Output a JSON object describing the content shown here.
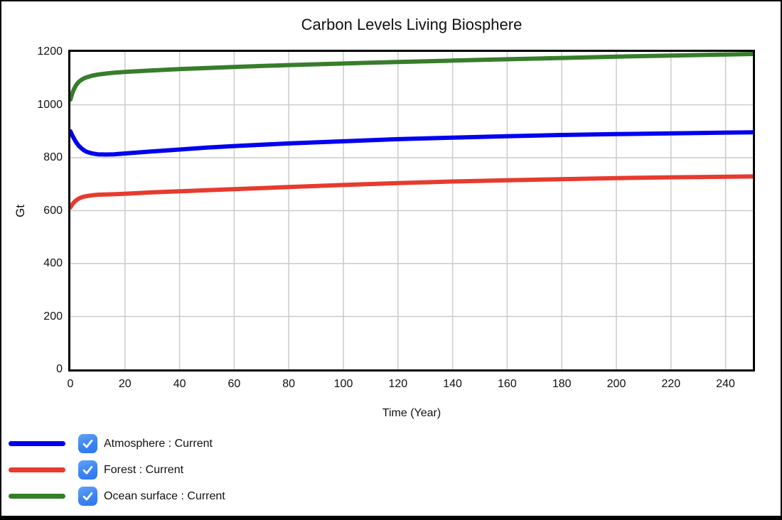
{
  "chart_data": {
    "type": "line",
    "title": "Carbon Levels Living Biosphere",
    "xlabel": "Time (Year)",
    "ylabel": "Gt",
    "xlim": [
      0,
      250
    ],
    "ylim": [
      0,
      1200
    ],
    "x_ticks": [
      0,
      20,
      40,
      60,
      80,
      100,
      120,
      140,
      160,
      180,
      200,
      220,
      240
    ],
    "y_ticks": [
      0,
      200,
      400,
      600,
      800,
      1000,
      1200
    ],
    "grid": true,
    "grid_color": "#cccccc",
    "legend_position": "bottom-left",
    "series": [
      {
        "name": "Atmosphere : Current",
        "color": "#0101f0",
        "points": [
          [
            0,
            900
          ],
          [
            1,
            878
          ],
          [
            2,
            860
          ],
          [
            3,
            846
          ],
          [
            4,
            836
          ],
          [
            5,
            828
          ],
          [
            6,
            822
          ],
          [
            8,
            816
          ],
          [
            10,
            813
          ],
          [
            13,
            812
          ],
          [
            16,
            813
          ],
          [
            20,
            816
          ],
          [
            30,
            824
          ],
          [
            40,
            831
          ],
          [
            50,
            838
          ],
          [
            60,
            844
          ],
          [
            80,
            854
          ],
          [
            100,
            862
          ],
          [
            120,
            870
          ],
          [
            140,
            876
          ],
          [
            160,
            881
          ],
          [
            180,
            886
          ],
          [
            200,
            889
          ],
          [
            220,
            892
          ],
          [
            250,
            896
          ]
        ]
      },
      {
        "name": "Forest : Current",
        "color": "#e63b2e",
        "points": [
          [
            0,
            612
          ],
          [
            1,
            628
          ],
          [
            2,
            638
          ],
          [
            3,
            645
          ],
          [
            4,
            650
          ],
          [
            5,
            653
          ],
          [
            6,
            655
          ],
          [
            8,
            658
          ],
          [
            10,
            660
          ],
          [
            13,
            661
          ],
          [
            16,
            662
          ],
          [
            20,
            664
          ],
          [
            30,
            669
          ],
          [
            40,
            673
          ],
          [
            50,
            677
          ],
          [
            60,
            681
          ],
          [
            80,
            689
          ],
          [
            100,
            697
          ],
          [
            120,
            704
          ],
          [
            140,
            710
          ],
          [
            160,
            715
          ],
          [
            180,
            719
          ],
          [
            200,
            723
          ],
          [
            220,
            726
          ],
          [
            250,
            729
          ]
        ]
      },
      {
        "name": "Ocean surface : Current",
        "color": "#377d2b",
        "points": [
          [
            0,
            1020
          ],
          [
            1,
            1052
          ],
          [
            2,
            1073
          ],
          [
            3,
            1086
          ],
          [
            4,
            1094
          ],
          [
            5,
            1100
          ],
          [
            6,
            1104
          ],
          [
            8,
            1110
          ],
          [
            10,
            1114
          ],
          [
            13,
            1118
          ],
          [
            16,
            1121
          ],
          [
            20,
            1124
          ],
          [
            30,
            1130
          ],
          [
            40,
            1135
          ],
          [
            50,
            1139
          ],
          [
            60,
            1143
          ],
          [
            80,
            1150
          ],
          [
            100,
            1156
          ],
          [
            120,
            1162
          ],
          [
            140,
            1167
          ],
          [
            160,
            1172
          ],
          [
            180,
            1177
          ],
          [
            200,
            1182
          ],
          [
            220,
            1186
          ],
          [
            250,
            1192
          ]
        ]
      }
    ]
  },
  "legend": {
    "items": [
      {
        "label": "Atmosphere : Current",
        "color": "#0101f0",
        "checked": true
      },
      {
        "label": "Forest : Current",
        "color": "#e63b2e",
        "checked": true
      },
      {
        "label": "Ocean surface : Current",
        "color": "#377d2b",
        "checked": true
      }
    ]
  }
}
